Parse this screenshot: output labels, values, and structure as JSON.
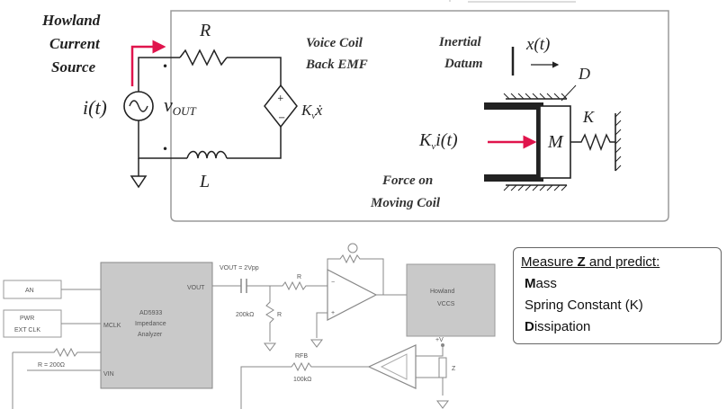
{
  "source": {
    "title": [
      "Howland",
      "Current",
      "Source"
    ],
    "it_label": "i(t)",
    "vout_label": "v",
    "vout_sub": "OUT",
    "resistor_label": "R",
    "inductor_label": "L"
  },
  "voicecoil": {
    "back_emf_line1": "Voice Coil",
    "back_emf_line2": "Back EMF",
    "kv_label": "K",
    "kv_sub": "v",
    "kv_tail": "ẋ"
  },
  "mechanics": {
    "inertial_line1": "Inertial",
    "inertial_line2": "Datum",
    "x_label": "x(t)",
    "d_label": "D",
    "k_label": "K",
    "force_label": "K",
    "force_sub": "v",
    "force_tail": "i(t)",
    "mass_label": "M",
    "force_on_line1": "Force on",
    "force_on_line2": "Moving Coil"
  },
  "bottom_circuit": {
    "in1": "AN",
    "in2_line1": "PWR",
    "in2_line2": "EXT CLK",
    "chip_line1": "AD5933",
    "chip_line2": "Impedance",
    "chip_line3": "Analyzer",
    "pin_vin": "VIN",
    "pin_vout": "VOUT",
    "pin_mclk": "MCLK",
    "cap_label": "VOUT = 2Vpp",
    "howland_line1": "Howland",
    "howland_line2": "VCCS",
    "r1_label": "R",
    "r2_label": "R",
    "rfb_label": "RFB"
  },
  "measure": {
    "title_pre": "Measure ",
    "title_bold": "Z",
    "title_post": " and predict:",
    "items": [
      {
        "bold": "M",
        "rest": "ass"
      },
      {
        "bold": "",
        "rest": "Spring Constant (K)"
      },
      {
        "bold": "D",
        "rest": "issipation"
      }
    ]
  },
  "colors": {
    "accent_red": "#e0144c",
    "line": "#222222",
    "chip_fill": "#c9c9c9",
    "panel_border": "#9a9a9a"
  }
}
